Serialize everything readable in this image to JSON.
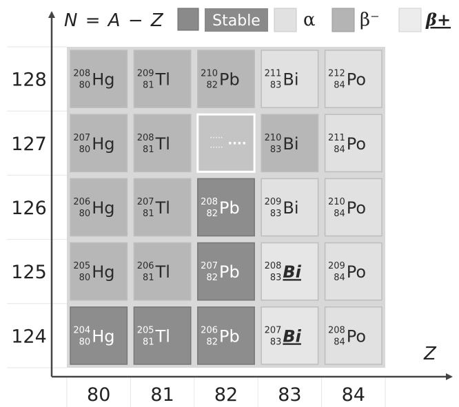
{
  "axes": {
    "y_title_parts": [
      "N",
      "=",
      "A",
      "−",
      "Z"
    ],
    "x_title": "Z",
    "x_ticks": [
      "80",
      "81",
      "82",
      "83",
      "84"
    ],
    "y_ticks": [
      "128",
      "127",
      "126",
      "125",
      "124"
    ]
  },
  "legend": [
    {
      "type": "stable",
      "label": "Stable",
      "color": "#8a8a8a",
      "label_color": "#ffffff"
    },
    {
      "type": "alpha",
      "label": "α",
      "color": "#e1e1e1"
    },
    {
      "type": "beta_minus",
      "label": "β⁻",
      "color": "#b4b4b4"
    },
    {
      "type": "beta_plus",
      "label": "β+",
      "color": "#ececec",
      "italic": true,
      "underline": true
    }
  ],
  "colors": {
    "stable": "#8d8d8d",
    "alpha": "#e1e1e1",
    "beta_minus": "#b7b7b7",
    "beta_plus": "#e6e6e6",
    "unknown": "#c4c4c4",
    "grid_bg": "#d8d8d8",
    "axis": "#444444"
  },
  "cells": [
    {
      "n": 128,
      "z": 80,
      "a": "208",
      "zlabel": "80",
      "sym": "Hg",
      "type": "beta_minus"
    },
    {
      "n": 128,
      "z": 81,
      "a": "209",
      "zlabel": "81",
      "sym": "Tl",
      "type": "beta_minus"
    },
    {
      "n": 128,
      "z": 82,
      "a": "210",
      "zlabel": "82",
      "sym": "Pb",
      "type": "beta_minus"
    },
    {
      "n": 128,
      "z": 83,
      "a": "211",
      "zlabel": "83",
      "sym": "Bi",
      "type": "alpha"
    },
    {
      "n": 128,
      "z": 84,
      "a": "212",
      "zlabel": "84",
      "sym": "Po",
      "type": "alpha"
    },
    {
      "n": 127,
      "z": 80,
      "a": "207",
      "zlabel": "80",
      "sym": "Hg",
      "type": "beta_minus"
    },
    {
      "n": 127,
      "z": 81,
      "a": "208",
      "zlabel": "81",
      "sym": "Tl",
      "type": "beta_minus"
    },
    {
      "n": 127,
      "z": 82,
      "a": "",
      "zlabel": "",
      "sym": "",
      "type": "unknown",
      "placeholder": true
    },
    {
      "n": 127,
      "z": 83,
      "a": "210",
      "zlabel": "83",
      "sym": "Bi",
      "type": "beta_minus"
    },
    {
      "n": 127,
      "z": 84,
      "a": "211",
      "zlabel": "84",
      "sym": "Po",
      "type": "alpha"
    },
    {
      "n": 126,
      "z": 80,
      "a": "206",
      "zlabel": "80",
      "sym": "Hg",
      "type": "beta_minus"
    },
    {
      "n": 126,
      "z": 81,
      "a": "207",
      "zlabel": "81",
      "sym": "Tl",
      "type": "beta_minus"
    },
    {
      "n": 126,
      "z": 82,
      "a": "208",
      "zlabel": "82",
      "sym": "Pb",
      "type": "stable"
    },
    {
      "n": 126,
      "z": 83,
      "a": "209",
      "zlabel": "83",
      "sym": "Bi",
      "type": "alpha"
    },
    {
      "n": 126,
      "z": 84,
      "a": "210",
      "zlabel": "84",
      "sym": "Po",
      "type": "alpha"
    },
    {
      "n": 125,
      "z": 80,
      "a": "205",
      "zlabel": "80",
      "sym": "Hg",
      "type": "beta_minus"
    },
    {
      "n": 125,
      "z": 81,
      "a": "206",
      "zlabel": "81",
      "sym": "Tl",
      "type": "beta_minus"
    },
    {
      "n": 125,
      "z": 82,
      "a": "207",
      "zlabel": "82",
      "sym": "Pb",
      "type": "stable"
    },
    {
      "n": 125,
      "z": 83,
      "a": "208",
      "zlabel": "83",
      "sym": "Bi",
      "type": "beta_plus",
      "styled": true
    },
    {
      "n": 125,
      "z": 84,
      "a": "209",
      "zlabel": "84",
      "sym": "Po",
      "type": "alpha"
    },
    {
      "n": 124,
      "z": 80,
      "a": "204",
      "zlabel": "80",
      "sym": "Hg",
      "type": "stable"
    },
    {
      "n": 124,
      "z": 81,
      "a": "205",
      "zlabel": "81",
      "sym": "Tl",
      "type": "stable"
    },
    {
      "n": 124,
      "z": 82,
      "a": "206",
      "zlabel": "82",
      "sym": "Pb",
      "type": "stable"
    },
    {
      "n": 124,
      "z": 83,
      "a": "207",
      "zlabel": "83",
      "sym": "Bi",
      "type": "beta_plus",
      "styled": true
    },
    {
      "n": 124,
      "z": 84,
      "a": "208",
      "zlabel": "84",
      "sym": "Po",
      "type": "alpha"
    }
  ]
}
